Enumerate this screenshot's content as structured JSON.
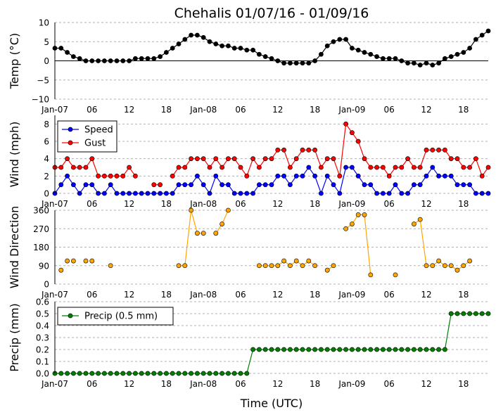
{
  "title": "Chehalis 01/07/16 - 01/09/16",
  "xlabel": "Time (UTC)",
  "colors": {
    "temp": "#000000",
    "speed": "#0000ff",
    "gust": "#ff0000",
    "direction": "#ffa500",
    "precip": "#008000",
    "grid": "#b0b0b0"
  },
  "chart_data": [
    {
      "type": "line",
      "ylabel": "Temp ($^{\\circ}$C)",
      "ylabel_display": "Temp (°C)",
      "ylim": [
        -10,
        10
      ],
      "yticks": [
        10,
        5,
        0,
        -5,
        -10
      ],
      "yticklabels": [
        "10",
        "5",
        "0",
        "−5",
        "−10"
      ],
      "xlim": [
        0,
        70
      ],
      "xticks": [
        0,
        6,
        12,
        18,
        24,
        30,
        36,
        42,
        48,
        54,
        60,
        66
      ],
      "xticklabels": [
        "Jan-07",
        "06",
        "12",
        "18",
        "Jan-08",
        "06",
        "12",
        "18",
        "Jan-09",
        "06",
        "12",
        "18"
      ],
      "grid": "y",
      "zero_line": true,
      "series": [
        {
          "name": "",
          "x": [
            0,
            1,
            2,
            3,
            4,
            5,
            6,
            7,
            8,
            9,
            10,
            11,
            12,
            13,
            14,
            15,
            16,
            17,
            18,
            19,
            20,
            21,
            22,
            23,
            24,
            25,
            26,
            27,
            28,
            29,
            30,
            31,
            32,
            33,
            34,
            35,
            36,
            37,
            38,
            39,
            40,
            41,
            42,
            43,
            44,
            45,
            46,
            47,
            48,
            49,
            50,
            51,
            52,
            53,
            54,
            55,
            56,
            57,
            58,
            59,
            60,
            61,
            62,
            63,
            64,
            65,
            66,
            67,
            68,
            69,
            70
          ],
          "values": [
            3.3,
            3.3,
            2.2,
            1.1,
            0.6,
            0,
            0,
            0,
            0,
            0,
            0,
            0,
            0,
            0.6,
            0.6,
            0.6,
            0.6,
            1.1,
            2.2,
            3.3,
            4.4,
            5.6,
            6.7,
            6.7,
            6.1,
            5,
            4.4,
            3.9,
            3.9,
            3.3,
            3.3,
            2.8,
            2.8,
            1.7,
            1.1,
            0.6,
            0,
            -0.6,
            -0.6,
            -0.6,
            -0.6,
            -0.6,
            0,
            1.7,
            3.9,
            5,
            5.6,
            5.6,
            3.3,
            2.8,
            2.2,
            1.7,
            1.1,
            0.6,
            0.6,
            0.6,
            0,
            -0.6,
            -0.6,
            -1.1,
            -0.6,
            -1.1,
            -0.6,
            0.6,
            1.1,
            1.7,
            2.2,
            3.3,
            5.6,
            6.7,
            7.8
          ]
        }
      ]
    },
    {
      "type": "line",
      "ylabel": "Wind (mph)",
      "ylim": [
        0,
        9
      ],
      "yticks": [
        0,
        2,
        4,
        6,
        8
      ],
      "yticklabels": [
        "0",
        "2",
        "4",
        "6",
        "8"
      ],
      "xlim": [
        0,
        70
      ],
      "xticks": [
        0,
        6,
        12,
        18,
        24,
        30,
        36,
        42,
        48,
        54,
        60,
        66
      ],
      "xticklabels": [
        "Jan-07",
        "06",
        "12",
        "18",
        "Jan-08",
        "06",
        "12",
        "18",
        "Jan-09",
        "06",
        "12",
        "18"
      ],
      "grid": "y",
      "legend": "top-left",
      "series": [
        {
          "name": "Speed",
          "x": [
            0,
            1,
            2,
            3,
            4,
            5,
            6,
            7,
            8,
            9,
            10,
            11,
            12,
            13,
            14,
            15,
            16,
            17,
            18,
            19,
            20,
            21,
            22,
            23,
            24,
            25,
            26,
            27,
            28,
            29,
            30,
            31,
            32,
            33,
            34,
            35,
            36,
            37,
            38,
            39,
            40,
            41,
            42,
            43,
            44,
            45,
            46,
            47,
            48,
            49,
            50,
            51,
            52,
            53,
            54,
            55,
            56,
            57,
            58,
            59,
            60,
            61,
            62,
            63,
            64,
            65,
            66,
            67,
            68,
            69,
            70
          ],
          "values": [
            0,
            1,
            2,
            1,
            0,
            1,
            1,
            0,
            0,
            1,
            0,
            0,
            0,
            0,
            0,
            0,
            0,
            0,
            0,
            0,
            1,
            1,
            1,
            2,
            1,
            0,
            2,
            1,
            1,
            0,
            0,
            0,
            0,
            1,
            1,
            1,
            2,
            2,
            1,
            2,
            2,
            3,
            2,
            0,
            2,
            1,
            0,
            3,
            3,
            2,
            1,
            1,
            0,
            0,
            0,
            1,
            0,
            0,
            1,
            1,
            2,
            3,
            2,
            2,
            2,
            1,
            1,
            1,
            0,
            0,
            0
          ]
        },
        {
          "name": "Gust",
          "x": [
            0,
            1,
            2,
            3,
            4,
            5,
            6,
            7,
            8,
            9,
            10,
            11,
            12,
            13,
            16,
            17,
            19,
            20,
            21,
            22,
            23,
            24,
            25,
            26,
            27,
            28,
            29,
            30,
            31,
            32,
            33,
            34,
            35,
            36,
            37,
            38,
            39,
            40,
            41,
            42,
            43,
            44,
            45,
            46,
            47,
            48,
            49,
            50,
            51,
            52,
            53,
            54,
            55,
            56,
            57,
            58,
            59,
            60,
            61,
            62,
            63,
            64,
            65,
            66,
            67,
            68,
            69,
            70
          ],
          "values": [
            3,
            3,
            4,
            3,
            3,
            3,
            4,
            2,
            2,
            2,
            2,
            2,
            3,
            2,
            1,
            1,
            2,
            3,
            3,
            4,
            4,
            4,
            3,
            4,
            3,
            4,
            4,
            3,
            2,
            4,
            3,
            4,
            4,
            5,
            5,
            3,
            4,
            5,
            5,
            5,
            3,
            4,
            4,
            2,
            8,
            7,
            6,
            4,
            3,
            3,
            3,
            2,
            3,
            3,
            4,
            3,
            3,
            5,
            5,
            5,
            5,
            4,
            4,
            3,
            3,
            4,
            2,
            3
          ],
          "gaps_before_x": [
            16,
            19
          ]
        }
      ]
    },
    {
      "type": "scatter",
      "ylabel": "Wind Direction",
      "ylim": [
        0,
        360
      ],
      "yticks": [
        0,
        90,
        180,
        270,
        360
      ],
      "yticklabels": [
        "0",
        "90",
        "180",
        "270",
        "360"
      ],
      "xlim": [
        0,
        70
      ],
      "xticks": [
        0,
        6,
        12,
        18,
        24,
        30,
        36,
        42,
        48,
        54,
        60,
        66
      ],
      "xticklabels": [
        "Jan-07",
        "06",
        "12",
        "18",
        "Jan-08",
        "06",
        "12",
        "18",
        "Jan-09",
        "06",
        "12",
        "18"
      ],
      "grid": "y",
      "series": [
        {
          "name": "",
          "x": [
            1,
            2,
            3,
            5,
            6,
            9,
            20,
            21,
            22,
            23,
            24,
            26,
            27,
            28,
            33,
            34,
            35,
            36,
            37,
            38,
            39,
            40,
            41,
            42,
            44,
            45,
            47,
            48,
            49,
            50,
            51,
            55,
            58,
            59,
            60,
            61,
            62,
            63,
            64,
            65,
            66,
            67
          ],
          "values": [
            68,
            113,
            113,
            113,
            113,
            90,
            90,
            90,
            360,
            248,
            248,
            248,
            293,
            360,
            90,
            90,
            90,
            90,
            113,
            90,
            113,
            90,
            113,
            90,
            68,
            90,
            270,
            293,
            338,
            338,
            45,
            45,
            293,
            315,
            90,
            90,
            113,
            90,
            90,
            68,
            90,
            113
          ],
          "segments": [
            [
              20,
              21,
              22,
              23,
              24
            ],
            [
              26,
              27,
              28
            ],
            [
              33,
              34,
              35,
              36,
              37,
              38,
              39,
              40,
              41,
              42
            ],
            [
              44,
              45
            ],
            [
              47,
              48,
              49,
              50,
              51
            ],
            [
              58,
              59,
              60,
              61,
              62,
              63,
              64,
              65,
              66,
              67
            ]
          ]
        }
      ]
    },
    {
      "type": "line",
      "ylabel": "Precip (mm)",
      "ylim": [
        0,
        0.6
      ],
      "yticks": [
        0.0,
        0.1,
        0.2,
        0.3,
        0.4,
        0.5,
        0.6
      ],
      "yticklabels": [
        "0.0",
        "0.1",
        "0.2",
        "0.3",
        "0.4",
        "0.5",
        "0.6"
      ],
      "xlim": [
        0,
        70
      ],
      "xticks": [
        0,
        6,
        12,
        18,
        24,
        30,
        36,
        42,
        48,
        54,
        60,
        66
      ],
      "xticklabels": [
        "Jan-07",
        "06",
        "12",
        "18",
        "Jan-08",
        "06",
        "12",
        "18",
        "Jan-09",
        "06",
        "12",
        "18"
      ],
      "grid": "y",
      "legend": "top-left",
      "series": [
        {
          "name": "Precip (0.5 mm)",
          "x": [
            0,
            1,
            2,
            3,
            4,
            5,
            6,
            7,
            8,
            9,
            10,
            11,
            12,
            13,
            14,
            15,
            16,
            17,
            18,
            19,
            20,
            21,
            22,
            23,
            24,
            25,
            26,
            27,
            28,
            29,
            30,
            31,
            32,
            33,
            34,
            35,
            36,
            37,
            38,
            39,
            40,
            41,
            42,
            43,
            44,
            45,
            46,
            47,
            48,
            49,
            50,
            51,
            52,
            53,
            54,
            55,
            56,
            57,
            58,
            59,
            60,
            61,
            62,
            63,
            64,
            65,
            66,
            67,
            68,
            69,
            70
          ],
          "values": [
            0,
            0,
            0,
            0,
            0,
            0,
            0,
            0,
            0,
            0,
            0,
            0,
            0,
            0,
            0,
            0,
            0,
            0,
            0,
            0,
            0,
            0,
            0,
            0,
            0,
            0,
            0,
            0,
            0,
            0,
            0,
            0,
            0.2,
            0.2,
            0.2,
            0.2,
            0.2,
            0.2,
            0.2,
            0.2,
            0.2,
            0.2,
            0.2,
            0.2,
            0.2,
            0.2,
            0.2,
            0.2,
            0.2,
            0.2,
            0.2,
            0.2,
            0.2,
            0.2,
            0.2,
            0.2,
            0.2,
            0.2,
            0.2,
            0.2,
            0.2,
            0.2,
            0.2,
            0.2,
            0.5,
            0.5,
            0.5,
            0.5,
            0.5,
            0.5,
            0.5
          ]
        }
      ]
    }
  ]
}
